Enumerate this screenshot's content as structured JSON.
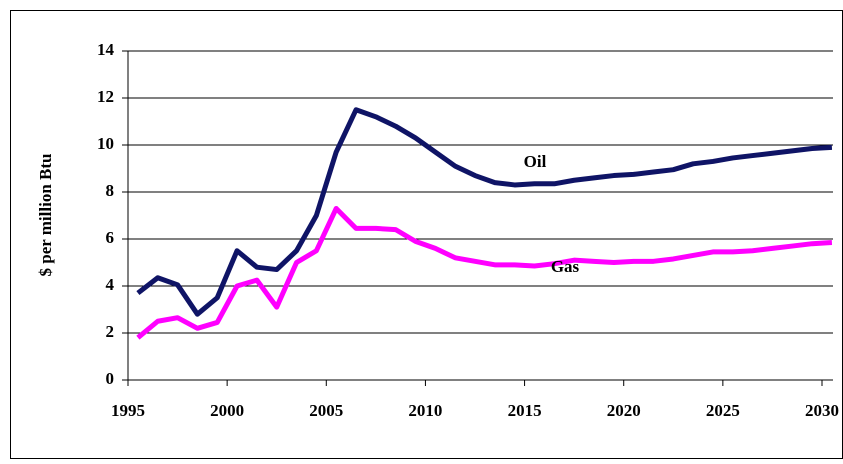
{
  "chart_data": {
    "type": "line",
    "y_label": "$ per million Btu",
    "x": [
      1995.5,
      1996.5,
      1997.5,
      1998.5,
      1999.5,
      2000.5,
      2001.5,
      2002.5,
      2003.5,
      2004.5,
      2005.5,
      2006.5,
      2007.5,
      2008.5,
      2009.5,
      2010.5,
      2011.5,
      2012.5,
      2013.5,
      2014.5,
      2015.5,
      2016.5,
      2017.5,
      2018.5,
      2019.5,
      2020.5,
      2021.5,
      2022.5,
      2023.5,
      2024.5,
      2025.5,
      2026.5,
      2027.5,
      2028.5,
      2029.5,
      2030.5
    ],
    "series": [
      {
        "name": "Oil",
        "color": "#0f1466",
        "values": [
          3.7,
          4.35,
          4.05,
          2.8,
          3.5,
          5.5,
          4.8,
          4.7,
          5.5,
          7.0,
          9.7,
          11.5,
          11.2,
          10.8,
          10.3,
          9.7,
          9.1,
          8.7,
          8.4,
          8.3,
          8.35,
          8.35,
          8.5,
          8.6,
          8.7,
          8.75,
          8.85,
          8.95,
          9.2,
          9.3,
          9.45,
          9.55,
          9.65,
          9.75,
          9.85,
          9.9
        ]
      },
      {
        "name": "Gas",
        "color": "#ff00ff",
        "values": [
          1.8,
          2.5,
          2.65,
          2.2,
          2.45,
          4.0,
          4.25,
          3.1,
          5.0,
          5.5,
          7.3,
          6.45,
          6.45,
          6.4,
          5.9,
          5.6,
          5.2,
          5.05,
          4.9,
          4.9,
          4.85,
          4.95,
          5.1,
          5.05,
          5.0,
          5.05,
          5.05,
          5.15,
          5.3,
          5.45,
          5.45,
          5.5,
          5.6,
          5.7,
          5.8,
          5.85
        ]
      }
    ],
    "xlim": [
      1995,
      2030
    ],
    "xticks": [
      1995,
      2000,
      2005,
      2010,
      2015,
      2020,
      2025,
      2030
    ],
    "ylim": [
      0,
      14
    ],
    "yticks": [
      0,
      2,
      4,
      6,
      8,
      10,
      12,
      14
    ],
    "grid": true
  }
}
